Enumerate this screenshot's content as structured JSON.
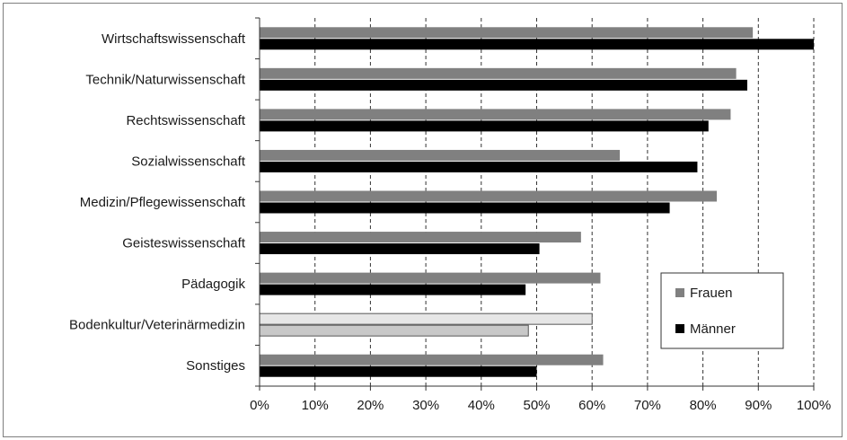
{
  "chart_data": {
    "type": "bar",
    "orientation": "horizontal",
    "categories": [
      "Wirtschaftswissenschaft",
      "Technik/Naturwissenschaft",
      "Rechtswissenschaft",
      "Sozialwissenschaft",
      "Medizin/Pflegewissenschaft",
      "Geisteswissenschaft",
      "Pädagogik",
      "Bodenkultur/Veterinärmedizin",
      "Sonstiges"
    ],
    "series": [
      {
        "name": "Frauen",
        "color": "#808080",
        "values": [
          89,
          86,
          85,
          65,
          82.5,
          58,
          61.5,
          60,
          62
        ]
      },
      {
        "name": "Männer",
        "color": "#000000",
        "values": [
          100,
          88,
          81,
          79,
          74,
          50.5,
          48,
          48.5,
          50
        ]
      }
    ],
    "highlighted_category": {
      "name": "Bodenkultur/Veterinärmedizin",
      "colors": {
        "Frauen": "#e6e6e6",
        "Männer": "#c8c8c8"
      }
    },
    "xlim": [
      0,
      100
    ],
    "x_ticks": [
      "0%",
      "10%",
      "20%",
      "30%",
      "40%",
      "50%",
      "60%",
      "70%",
      "80%",
      "90%",
      "100%"
    ],
    "grid": "vertical dashed",
    "legend_position": "right-lower"
  }
}
